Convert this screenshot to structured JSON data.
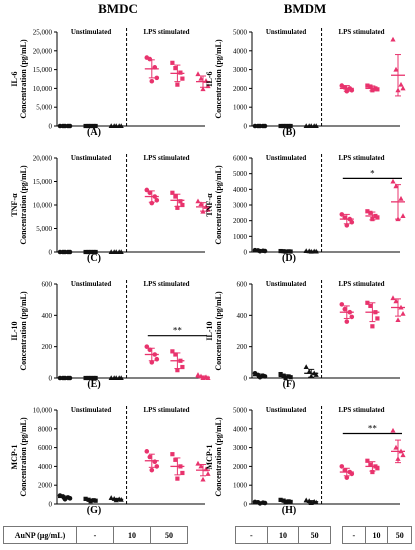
{
  "figure": {
    "left_title": "BMDC",
    "right_title": "BMDM",
    "group_unstim": "Unstimulated",
    "group_lps": "LPS stimulated",
    "table_label": "AuNP (µg/mL)",
    "dose_labels": [
      "-",
      "10",
      "50"
    ]
  },
  "colors": {
    "unstim": "#111111",
    "lps": "#e8336d",
    "axis": "#000000"
  },
  "chart_data": [
    {
      "type": "scatter",
      "panel": "(A)",
      "column": "BMDC",
      "ylabel": [
        "IL-6",
        "Concentration (pg/mL)"
      ],
      "ylim": [
        0,
        25000
      ],
      "yticks": [
        0,
        5000,
        10000,
        15000,
        20000,
        25000
      ],
      "ytick_labels": [
        "0",
        "5,000",
        "10,000",
        "15,000",
        "20,000",
        "25,000"
      ],
      "groups": [
        {
          "points": [
            0,
            0,
            0,
            0,
            0
          ],
          "mean": 0,
          "sd": 0,
          "marker": "circle",
          "color": "#111111"
        },
        {
          "points": [
            0,
            0,
            0,
            0,
            0
          ],
          "mean": 0,
          "sd": 0,
          "marker": "square",
          "color": "#111111"
        },
        {
          "points": [
            0,
            0,
            0,
            0,
            0
          ],
          "mean": 0,
          "sd": 0,
          "marker": "triangle",
          "color": "#111111"
        },
        {
          "points": [
            18200,
            17800,
            15600,
            12800,
            11900
          ],
          "mean": 15200,
          "sd": 2400,
          "marker": "circle",
          "color": "#e8336d"
        },
        {
          "points": [
            16800,
            15400,
            14200,
            12600,
            11000
          ],
          "mean": 14000,
          "sd": 2200,
          "marker": "square",
          "color": "#e8336d"
        },
        {
          "points": [
            13800,
            12600,
            12000,
            10600,
            9800
          ],
          "mean": 11800,
          "sd": 1500,
          "marker": "triangle",
          "color": "#e8336d"
        }
      ],
      "sig": []
    },
    {
      "type": "scatter",
      "panel": "(B)",
      "column": "BMDM",
      "ylabel": [
        "IL-6",
        "Concentration (pg/mL)"
      ],
      "ylim": [
        0,
        5000
      ],
      "yticks": [
        0,
        1000,
        2000,
        3000,
        4000,
        5000
      ],
      "ytick_labels": [
        "0",
        "1000",
        "2000",
        "3000",
        "4000",
        "5000"
      ],
      "groups": [
        {
          "points": [
            0,
            0,
            0,
            0,
            0
          ],
          "mean": 0,
          "sd": 0,
          "marker": "circle",
          "color": "#111111"
        },
        {
          "points": [
            0,
            0,
            0,
            0,
            0
          ],
          "mean": 0,
          "sd": 0,
          "marker": "square",
          "color": "#111111"
        },
        {
          "points": [
            0,
            0,
            0,
            0,
            0
          ],
          "mean": 0,
          "sd": 0,
          "marker": "triangle",
          "color": "#111111"
        },
        {
          "points": [
            2150,
            2050,
            2000,
            1900,
            1850
          ],
          "mean": 2000,
          "sd": 150,
          "marker": "circle",
          "color": "#e8336d"
        },
        {
          "points": [
            2150,
            2100,
            2000,
            1950,
            1900
          ],
          "mean": 2000,
          "sd": 130,
          "marker": "square",
          "color": "#e8336d"
        },
        {
          "points": [
            4600,
            3000,
            2200,
            2000,
            1900
          ],
          "mean": 2700,
          "sd": 1100,
          "marker": "triangle",
          "color": "#e8336d"
        }
      ],
      "sig": []
    },
    {
      "type": "scatter",
      "panel": "(C)",
      "column": "BMDC",
      "ylabel": [
        "TNF-α",
        "Concentration (pg/mL)"
      ],
      "ylim": [
        0,
        20000
      ],
      "yticks": [
        0,
        5000,
        10000,
        15000,
        20000
      ],
      "ytick_labels": [
        "0",
        "5,000",
        "10,000",
        "15,000",
        "20,000"
      ],
      "groups": [
        {
          "points": [
            0,
            0,
            0,
            0,
            0
          ],
          "mean": 0,
          "sd": 0,
          "marker": "circle",
          "color": "#111111"
        },
        {
          "points": [
            0,
            0,
            0,
            0,
            0
          ],
          "mean": 0,
          "sd": 0,
          "marker": "square",
          "color": "#111111"
        },
        {
          "points": [
            0,
            0,
            0,
            0,
            0
          ],
          "mean": 0,
          "sd": 0,
          "marker": "triangle",
          "color": "#111111"
        },
        {
          "points": [
            13200,
            12600,
            11800,
            11000,
            10400
          ],
          "mean": 11800,
          "sd": 1200,
          "marker": "circle",
          "color": "#e8336d"
        },
        {
          "points": [
            12600,
            11800,
            10800,
            10000,
            9400
          ],
          "mean": 11000,
          "sd": 1300,
          "marker": "square",
          "color": "#e8336d"
        },
        {
          "points": [
            10800,
            10200,
            9600,
            9000,
            8600
          ],
          "mean": 9600,
          "sd": 900,
          "marker": "triangle",
          "color": "#e8336d"
        }
      ],
      "sig": []
    },
    {
      "type": "scatter",
      "panel": "(D)",
      "column": "BMDM",
      "ylabel": [
        "TNF-α",
        "Concentration (pg/mL)"
      ],
      "ylim": [
        0,
        6000
      ],
      "yticks": [
        0,
        1000,
        2000,
        3000,
        4000,
        5000,
        6000
      ],
      "ytick_labels": [
        "0",
        "1000",
        "2000",
        "3000",
        "4000",
        "5000",
        "6000"
      ],
      "groups": [
        {
          "points": [
            120,
            100,
            80,
            60,
            50
          ],
          "mean": 80,
          "sd": 30,
          "marker": "circle",
          "color": "#111111"
        },
        {
          "points": [
            60,
            50,
            40,
            30,
            20
          ],
          "mean": 40,
          "sd": 20,
          "marker": "square",
          "color": "#111111"
        },
        {
          "points": [
            60,
            50,
            40,
            30,
            20
          ],
          "mean": 40,
          "sd": 20,
          "marker": "triangle",
          "color": "#111111"
        },
        {
          "points": [
            2400,
            2200,
            2100,
            1900,
            1700
          ],
          "mean": 2100,
          "sd": 300,
          "marker": "circle",
          "color": "#e8336d"
        },
        {
          "points": [
            2600,
            2500,
            2300,
            2200,
            2100
          ],
          "mean": 2300,
          "sd": 250,
          "marker": "square",
          "color": "#e8336d"
        },
        {
          "points": [
            4500,
            4200,
            3400,
            2300,
            2100
          ],
          "mean": 3200,
          "sd": 1100,
          "marker": "triangle",
          "color": "#e8336d"
        }
      ],
      "sig": [
        {
          "from": 3,
          "to": 5,
          "value": 4700,
          "label": "*"
        }
      ]
    },
    {
      "type": "scatter",
      "panel": "(E)",
      "column": "BMDC",
      "ylabel": [
        "IL-10",
        "Concentration (pg/mL)"
      ],
      "ylim": [
        0,
        600
      ],
      "yticks": [
        0,
        200,
        400,
        600
      ],
      "ytick_labels": [
        "0",
        "200",
        "400",
        "600"
      ],
      "groups": [
        {
          "points": [
            0,
            0,
            0,
            0,
            0
          ],
          "mean": 0,
          "sd": 0,
          "marker": "circle",
          "color": "#111111"
        },
        {
          "points": [
            0,
            0,
            0,
            0,
            0
          ],
          "mean": 0,
          "sd": 0,
          "marker": "square",
          "color": "#111111"
        },
        {
          "points": [
            0,
            0,
            0,
            0,
            0
          ],
          "mean": 0,
          "sd": 0,
          "marker": "triangle",
          "color": "#111111"
        },
        {
          "points": [
            200,
            180,
            150,
            120,
            100
          ],
          "mean": 150,
          "sd": 40,
          "marker": "circle",
          "color": "#e8336d"
        },
        {
          "points": [
            170,
            150,
            110,
            70,
            50
          ],
          "mean": 110,
          "sd": 50,
          "marker": "square",
          "color": "#e8336d"
        },
        {
          "points": [
            20,
            10,
            5,
            0,
            0
          ],
          "mean": 5,
          "sd": 8,
          "marker": "triangle",
          "color": "#e8336d"
        }
      ],
      "sig": [
        {
          "from": 3,
          "to": 5,
          "value": 270,
          "label": "**"
        }
      ]
    },
    {
      "type": "scatter",
      "panel": "(F)",
      "column": "BMDM",
      "ylabel": [
        "IL-10",
        "Concentration (pg/mL)"
      ],
      "ylim": [
        0,
        600
      ],
      "yticks": [
        0,
        200,
        400,
        600
      ],
      "ytick_labels": [
        "0",
        "200",
        "400",
        "600"
      ],
      "groups": [
        {
          "points": [
            30,
            20,
            15,
            10,
            5
          ],
          "mean": 15,
          "sd": 10,
          "marker": "circle",
          "color": "#111111"
        },
        {
          "points": [
            25,
            15,
            10,
            5,
            0
          ],
          "mean": 10,
          "sd": 10,
          "marker": "square",
          "color": "#111111"
        },
        {
          "points": [
            70,
            40,
            30,
            20,
            10
          ],
          "mean": 30,
          "sd": 25,
          "marker": "triangle",
          "color": "#111111"
        },
        {
          "points": [
            470,
            440,
            420,
            390,
            360
          ],
          "mean": 420,
          "sd": 40,
          "marker": "circle",
          "color": "#e8336d"
        },
        {
          "points": [
            480,
            460,
            420,
            380,
            330
          ],
          "mean": 420,
          "sd": 60,
          "marker": "square",
          "color": "#e8336d"
        },
        {
          "points": [
            510,
            490,
            450,
            410,
            370
          ],
          "mean": 450,
          "sd": 55,
          "marker": "triangle",
          "color": "#e8336d"
        }
      ],
      "sig": []
    },
    {
      "type": "scatter",
      "panel": "(G)",
      "column": "BMDC",
      "ylabel": [
        "MCP-1",
        "Concentration (pg/mL)"
      ],
      "ylim": [
        0,
        10000
      ],
      "yticks": [
        0,
        2000,
        4000,
        6000,
        8000,
        10000
      ],
      "ytick_labels": [
        "0",
        "2000",
        "4000",
        "6000",
        "8000",
        "10,000"
      ],
      "groups": [
        {
          "points": [
            900,
            800,
            700,
            600,
            500
          ],
          "mean": 700,
          "sd": 150,
          "marker": "circle",
          "color": "#111111"
        },
        {
          "points": [
            550,
            450,
            400,
            350,
            300
          ],
          "mean": 400,
          "sd": 100,
          "marker": "square",
          "color": "#111111"
        },
        {
          "points": [
            650,
            550,
            500,
            450,
            400
          ],
          "mean": 500,
          "sd": 100,
          "marker": "triangle",
          "color": "#111111"
        },
        {
          "points": [
            5600,
            5000,
            4500,
            4000,
            3600
          ],
          "mean": 4600,
          "sd": 700,
          "marker": "circle",
          "color": "#e8336d"
        },
        {
          "points": [
            5300,
            4700,
            4000,
            3300,
            2700
          ],
          "mean": 4000,
          "sd": 900,
          "marker": "square",
          "color": "#e8336d"
        },
        {
          "points": [
            4300,
            4000,
            3700,
            3200,
            2600
          ],
          "mean": 3600,
          "sd": 600,
          "marker": "triangle",
          "color": "#e8336d"
        }
      ],
      "sig": []
    },
    {
      "type": "scatter",
      "panel": "(H)",
      "column": "BMDM",
      "ylabel": [
        "MCP-1",
        "Concentration (pg/mL)"
      ],
      "ylim": [
        0,
        5000
      ],
      "yticks": [
        0,
        1000,
        2000,
        3000,
        4000,
        5000
      ],
      "ytick_labels": [
        "0",
        "1000",
        "2000",
        "3000",
        "4000",
        "5000"
      ],
      "groups": [
        {
          "points": [
            110,
            90,
            70,
            50,
            30
          ],
          "mean": 70,
          "sd": 30,
          "marker": "circle",
          "color": "#111111"
        },
        {
          "points": [
            220,
            180,
            140,
            110,
            80
          ],
          "mean": 150,
          "sd": 50,
          "marker": "square",
          "color": "#111111"
        },
        {
          "points": [
            200,
            160,
            120,
            80,
            50
          ],
          "mean": 120,
          "sd": 60,
          "marker": "triangle",
          "color": "#111111"
        },
        {
          "points": [
            2000,
            1800,
            1700,
            1600,
            1400
          ],
          "mean": 1700,
          "sd": 200,
          "marker": "circle",
          "color": "#e8336d"
        },
        {
          "points": [
            2300,
            2100,
            2000,
            1900,
            1700
          ],
          "mean": 2000,
          "sd": 250,
          "marker": "square",
          "color": "#e8336d"
        },
        {
          "points": [
            3900,
            3000,
            2800,
            2600,
            2400
          ],
          "mean": 2800,
          "sd": 600,
          "marker": "triangle",
          "color": "#e8336d"
        }
      ],
      "sig": [
        {
          "from": 3,
          "to": 5,
          "value": 3750,
          "label": "**"
        }
      ]
    }
  ]
}
